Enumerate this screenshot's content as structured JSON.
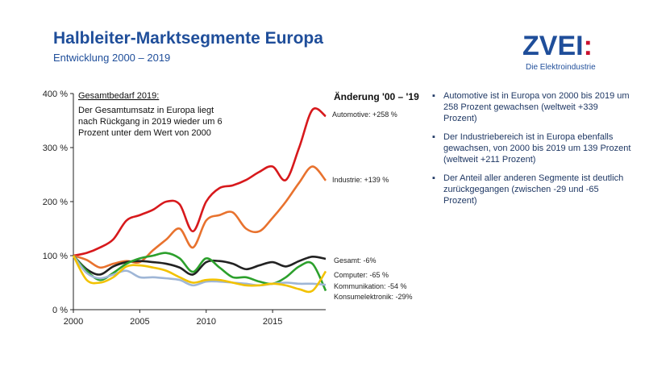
{
  "header": {
    "title": "Halbleiter-Marktsegmente Europa",
    "subtitle": "Entwicklung 2000 – 2019"
  },
  "logo": {
    "word": "ZVEI",
    "colon": ":",
    "tagline": "Die Elektroindustrie"
  },
  "annotation": {
    "heading": "Gesamtbedarf 2019:",
    "lines": [
      "Der Gesamtumsatz in Europa liegt",
      "nach Rückgang in 2019 wieder um 6",
      "Prozent unter dem Wert von 2000"
    ]
  },
  "bullets": [
    "Automotive ist in Europa von 2000 bis 2019 um 258 Prozent gewachsen (weltweit +339 Prozent)",
    "Der Industriebereich ist in Europa ebenfalls gewachsen, von 2000 bis 2019 um 139 Prozent (weltweit +211 Prozent)",
    "Der Anteil aller anderen Segmente ist deutlich zurückgegangen (zwischen -29 und -65 Prozent)"
  ],
  "chart_data": {
    "type": "line",
    "title": "Halbleiter-Marktsegmente Europa",
    "xlabel": "",
    "ylabel": "",
    "xlim": [
      2000,
      2019
    ],
    "ylim": [
      0,
      400
    ],
    "x_ticks": [
      "2000",
      "2005",
      "2010",
      "2015"
    ],
    "y_ticks": [
      "0 %",
      "100 %",
      "200 %",
      "300 %",
      "400 %"
    ],
    "change_header": "Änderung '00 – '19",
    "x": [
      2000,
      2001,
      2002,
      2003,
      2004,
      2005,
      2006,
      2007,
      2008,
      2009,
      2010,
      2011,
      2012,
      2013,
      2014,
      2015,
      2016,
      2017,
      2018,
      2019
    ],
    "series": [
      {
        "name": "Automotive",
        "label": "Automotive: +258 %",
        "color": "#d7191c",
        "values": [
          100,
          105,
          115,
          130,
          165,
          175,
          185,
          200,
          195,
          145,
          200,
          225,
          230,
          240,
          255,
          265,
          240,
          300,
          370,
          358
        ]
      },
      {
        "name": "Industrie",
        "label": "Industrie: +139 %",
        "color": "#e8722e",
        "values": [
          100,
          92,
          78,
          85,
          90,
          88,
          110,
          130,
          150,
          115,
          165,
          175,
          180,
          150,
          145,
          170,
          200,
          235,
          265,
          239
        ]
      },
      {
        "name": "Gesamt",
        "label": "Gesamt: -6%",
        "color": "#222222",
        "values": [
          100,
          75,
          65,
          80,
          88,
          90,
          88,
          85,
          78,
          65,
          88,
          90,
          85,
          75,
          82,
          88,
          80,
          90,
          98,
          94
        ]
      },
      {
        "name": "Computer",
        "label": "Computer: -65 %",
        "color": "#2ca02c",
        "values": [
          100,
          72,
          55,
          68,
          85,
          95,
          100,
          105,
          95,
          70,
          95,
          78,
          60,
          60,
          52,
          48,
          60,
          80,
          85,
          35
        ]
      },
      {
        "name": "Kommunikation",
        "label": "Kommunikation: -54 %",
        "color": "#9fb6d6",
        "values": [
          100,
          68,
          58,
          65,
          72,
          60,
          60,
          58,
          55,
          45,
          52,
          52,
          50,
          48,
          45,
          48,
          50,
          48,
          48,
          46
        ]
      },
      {
        "name": "Konsumelektronik",
        "label": "Konsumelektronik: -29%",
        "color": "#f2c200",
        "values": [
          100,
          55,
          50,
          60,
          80,
          82,
          78,
          72,
          60,
          50,
          55,
          55,
          50,
          45,
          45,
          48,
          45,
          38,
          35,
          71
        ]
      }
    ]
  }
}
